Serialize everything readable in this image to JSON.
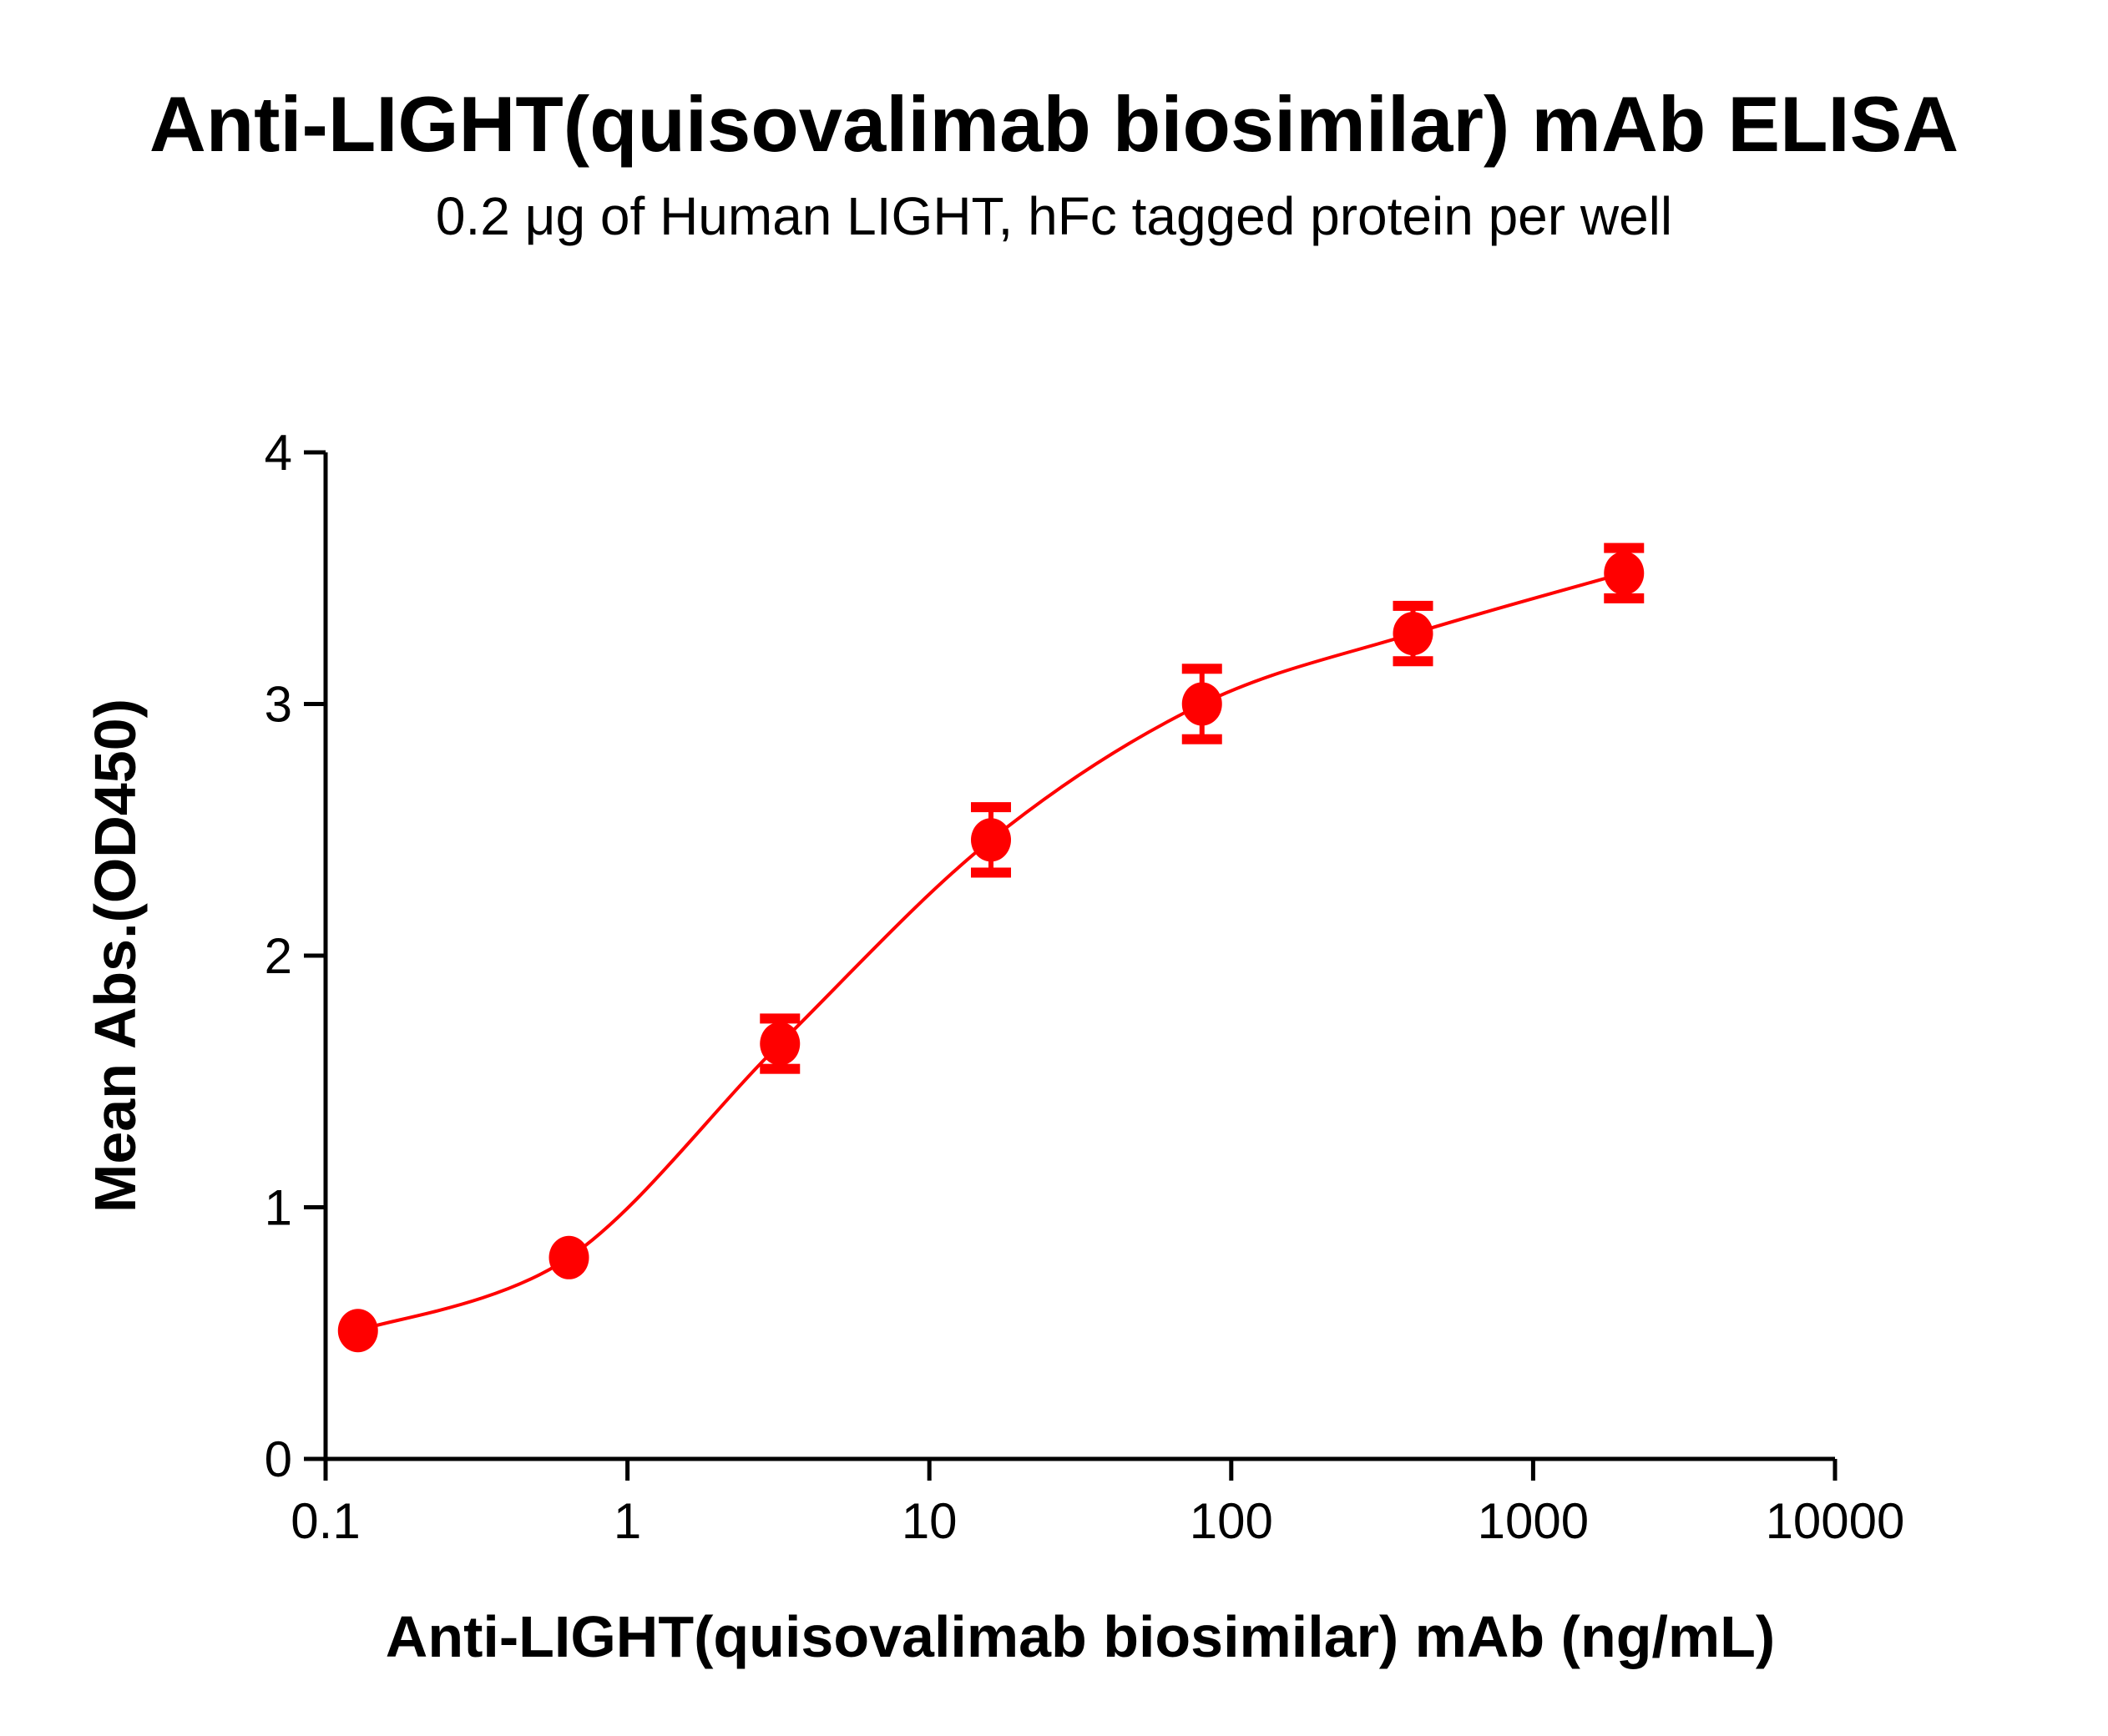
{
  "chart_data": {
    "type": "scatter",
    "title": "Anti-LIGHT(quisovalimab biosimilar) mAb ELISA",
    "subtitle": "0.2 μg of Human LIGHT, hFc tagged protein per well",
    "xlabel": "Anti-LIGHT(quisovalimab biosimilar) mAb (ng/mL)",
    "ylabel": "Mean Abs.(OD450)",
    "xscale": "log",
    "xlim": [
      0.1,
      10000
    ],
    "ylim": [
      0,
      4
    ],
    "xticks": [
      "0.1",
      "1",
      "10",
      "100",
      "1000",
      "10000"
    ],
    "yticks": [
      "0",
      "1",
      "2",
      "3",
      "4"
    ],
    "grid": false,
    "legend": "none",
    "color": "#ff0000",
    "fit_curve": "sigmoidal",
    "series": [
      {
        "x": [
          0.128,
          0.64,
          3.2,
          16,
          80,
          400,
          2000
        ],
        "y": [
          0.51,
          0.8,
          1.65,
          2.46,
          3.0,
          3.28,
          3.52
        ],
        "error": [
          0.02,
          0.02,
          0.1,
          0.13,
          0.14,
          0.11,
          0.1
        ]
      }
    ]
  }
}
